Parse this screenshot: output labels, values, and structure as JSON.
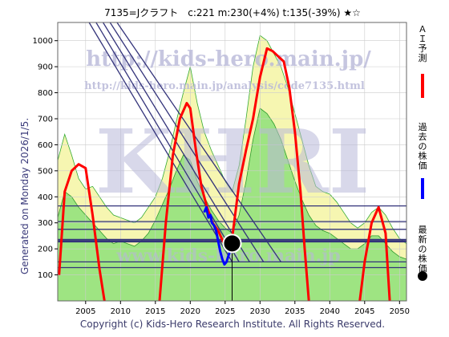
{
  "chart_data": {
    "type": "line",
    "title": "7135=Jクラフト　c:221  m:230(+4%)  t:135(-39%)  ★☆",
    "xlim": [
      2001,
      2051
    ],
    "ylim": [
      0,
      1070
    ],
    "xticks": [
      2005,
      2010,
      2015,
      2020,
      2025,
      2030,
      2035,
      2040,
      2045,
      2050
    ],
    "yticks": [
      100,
      200,
      300,
      400,
      500,
      600,
      700,
      800,
      900,
      1000
    ],
    "grid": true,
    "generated_label": "Generated on Monday 2026/1/5.",
    "copyright": "Copyright (c) Kids-Hero Research Institute. All Rights Reserved.",
    "watermark": {
      "url1": "http://kids-hero.main.jp/",
      "url2": "http://kids-hero.main.jp/analysis/code7135.html",
      "big": "KHRI",
      "bottom": "www.kids-hero.main.jp"
    },
    "legend": [
      {
        "label": "ＡＩ予測",
        "color": "#ff0000"
      },
      {
        "label": "過去の株価",
        "color": "#0000ff"
      },
      {
        "label": "最新の株価",
        "color": "#000000"
      }
    ],
    "current_point": {
      "x": 2026.0,
      "y": 221
    },
    "horizontal_levels": [
      128,
      150,
      228,
      235,
      275,
      305,
      365
    ],
    "trend_lines": [
      {
        "x": [
          2005.5,
          2026.0
        ],
        "y": [
          1070,
          150
        ]
      },
      {
        "x": [
          2006.5,
          2027.0
        ],
        "y": [
          1070,
          150
        ]
      },
      {
        "x": [
          2007.5,
          2028.5
        ],
        "y": [
          1070,
          150
        ]
      },
      {
        "x": [
          2008.5,
          2030.5
        ],
        "y": [
          1070,
          150
        ]
      },
      {
        "x": [
          2009.5,
          2033.0
        ],
        "y": [
          1070,
          150
        ]
      }
    ],
    "band_outer": {
      "x": [
        2001,
        2002,
        2003,
        2004,
        2005,
        2006,
        2007,
        2008,
        2009,
        2010,
        2011,
        2012,
        2013,
        2014,
        2015,
        2016,
        2017,
        2018,
        2019,
        2020,
        2021,
        2022,
        2023,
        2024,
        2025,
        2026,
        2027,
        2028,
        2029,
        2030,
        2031,
        2032,
        2033,
        2034,
        2035,
        2036,
        2037,
        2038,
        2039,
        2040,
        2041,
        2042,
        2043,
        2044,
        2045,
        2046,
        2047,
        2048,
        2049,
        2050,
        2051
      ],
      "y": [
        540,
        640,
        560,
        470,
        430,
        440,
        400,
        360,
        330,
        320,
        310,
        300,
        320,
        360,
        400,
        470,
        570,
        690,
        800,
        900,
        760,
        650,
        580,
        520,
        460,
        420,
        520,
        700,
        900,
        1020,
        1000,
        950,
        900,
        820,
        720,
        620,
        520,
        440,
        420,
        410,
        380,
        340,
        300,
        280,
        300,
        340,
        360,
        330,
        280,
        240,
        220
      ]
    },
    "band_green": {
      "x": [
        2001,
        2002,
        2003,
        2004,
        2005,
        2006,
        2007,
        2008,
        2009,
        2010,
        2011,
        2012,
        2013,
        2014,
        2015,
        2016,
        2017,
        2018,
        2019,
        2020,
        2021,
        2022,
        2023,
        2024,
        2025,
        2026,
        2027,
        2028,
        2029,
        2030,
        2031,
        2032,
        2033,
        2034,
        2035,
        2036,
        2037,
        2038,
        2039,
        2040,
        2041,
        2042,
        2043,
        2044,
        2045,
        2046,
        2047,
        2048,
        2049,
        2050,
        2051
      ],
      "y": [
        320,
        420,
        400,
        360,
        330,
        300,
        270,
        240,
        220,
        230,
        220,
        210,
        230,
        260,
        310,
        370,
        430,
        500,
        560,
        540,
        460,
        400,
        350,
        310,
        280,
        260,
        330,
        460,
        620,
        740,
        720,
        680,
        620,
        540,
        460,
        390,
        330,
        290,
        270,
        260,
        240,
        220,
        200,
        200,
        220,
        250,
        250,
        220,
        190,
        170,
        160
      ]
    },
    "series": [
      {
        "name": "ＡＩ予測",
        "color": "#ff0000",
        "segments": [
          {
            "x": [
              2001.2,
              2002.0,
              2003.0,
              2004.0,
              2005.0,
              2006.0,
              2007.0,
              2007.7
            ],
            "y": [
              100,
              420,
              500,
              525,
              510,
              330,
              120,
              0
            ]
          },
          {
            "x": [
              2015.6,
              2016.5,
              2017.5,
              2018.5,
              2019.5,
              2020.0,
              2020.8,
              2021.6,
              2022.4,
              2023.2,
              2024.0
            ],
            "y": [
              0,
              300,
              560,
              700,
              760,
              740,
              580,
              440,
              360,
              300,
              270
            ]
          },
          {
            "x": [
              2024.0,
              2025.0,
              2026.0,
              2027.0,
              2028.0,
              2029.0,
              2030.0,
              2031.0,
              2031.8,
              2032.6,
              2033.4,
              2034.2,
              2035.0,
              2035.8,
              2036.4,
              2037.0
            ],
            "y": [
              270,
              210,
              240,
              450,
              580,
              700,
              860,
              970,
              960,
              940,
              920,
              820,
              650,
              420,
              200,
              0
            ]
          },
          {
            "x": [
              2044.3,
              2045.0,
              2046.0,
              2047.0,
              2048.0,
              2048.6
            ],
            "y": [
              0,
              150,
              300,
              360,
              260,
              0
            ]
          }
        ]
      },
      {
        "name": "過去の株価",
        "color": "#0000ff",
        "x": [
          2022.0,
          2022.3,
          2022.6,
          2022.9,
          2023.1,
          2023.4,
          2023.7,
          2024.0,
          2024.3,
          2024.6,
          2024.9,
          2025.2,
          2025.5,
          2025.8,
          2026.0
        ],
        "y": [
          340,
          360,
          320,
          330,
          300,
          290,
          270,
          230,
          190,
          160,
          140,
          150,
          175,
          200,
          221
        ]
      }
    ]
  }
}
